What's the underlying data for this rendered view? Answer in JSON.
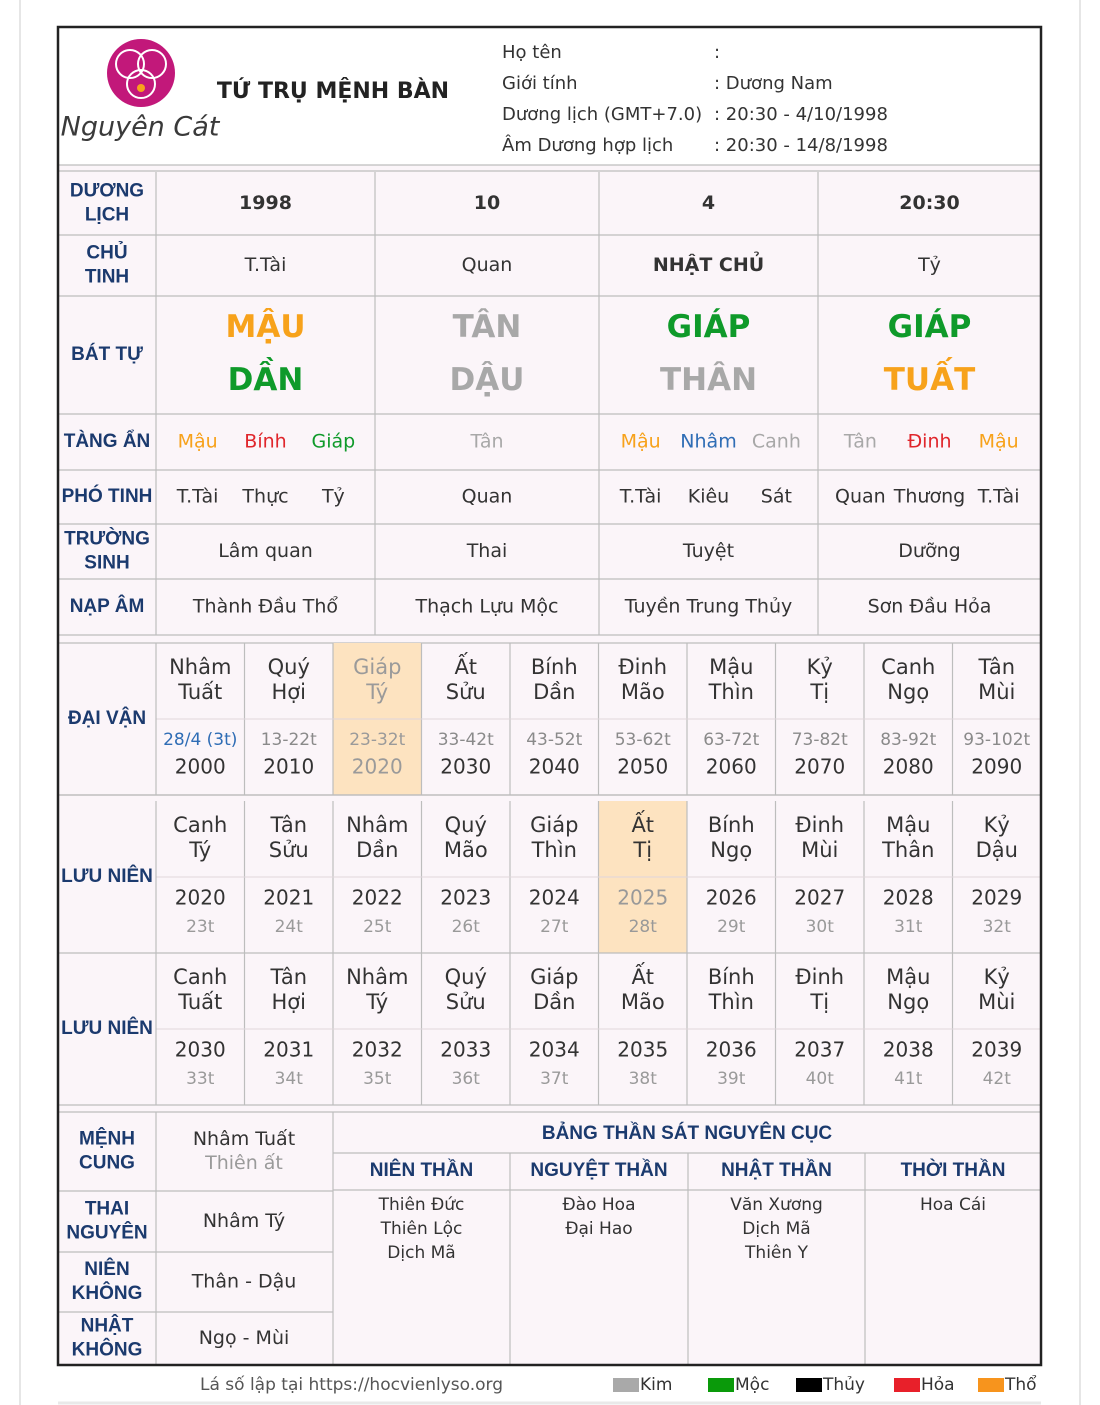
{
  "header": {
    "logo_text": "Nguyên Cát",
    "title": "TỨ TRỤ MỆNH BÀN",
    "info": [
      {
        "label": "Họ tên",
        "value": ":"
      },
      {
        "label": "Giới tính",
        "value": ": Dương Nam"
      },
      {
        "label": "Dương lịch (GMT+7.0)",
        "value": ": 20:30 - 4/10/1998"
      },
      {
        "label": "Âm Dương hợp lịch",
        "value": ": 20:30 - 14/8/1998"
      }
    ]
  },
  "pillars": {
    "rows": [
      {
        "label": [
          "DƯƠNG",
          "LỊCH"
        ],
        "cells": [
          [
            {
              "text": "1998",
              "bold": true
            }
          ],
          [
            {
              "text": "10",
              "bold": true
            }
          ],
          [
            {
              "text": "4",
              "bold": true
            }
          ],
          [
            {
              "text": "20:30",
              "bold": true
            }
          ]
        ]
      },
      {
        "label": [
          "CHỦ",
          "TINH"
        ],
        "cells": [
          [
            {
              "text": "T.Tài"
            }
          ],
          [
            {
              "text": "Quan"
            }
          ],
          [
            {
              "text": "NHẬT CHỦ",
              "bold": true
            }
          ],
          [
            {
              "text": "Tỷ"
            }
          ]
        ]
      },
      {
        "label": [
          "BÁT TỰ"
        ],
        "layout": "stack",
        "cells": [
          [
            {
              "text": "MẬU",
              "color": "#f7a21b"
            },
            {
              "text": "DẦN",
              "color": "#0f9a2a"
            }
          ],
          [
            {
              "text": "TÂN",
              "color": "#a8a8a8"
            },
            {
              "text": "DẬU",
              "color": "#a8a8a8"
            }
          ],
          [
            {
              "text": "GIÁP",
              "color": "#0f9a2a"
            },
            {
              "text": "THÂN",
              "color": "#a8a8a8"
            }
          ],
          [
            {
              "text": "GIÁP",
              "color": "#0f9a2a"
            },
            {
              "text": "TUẤT",
              "color": "#f7a21b"
            }
          ]
        ]
      },
      {
        "label": [
          "TÀNG ẨN"
        ],
        "cells": [
          [
            {
              "text": "Mậu",
              "color": "#f7a21b"
            },
            {
              "text": "Bính",
              "color": "#e0262c"
            },
            {
              "text": "Giáp",
              "color": "#0f9a2a"
            }
          ],
          [
            {
              "text": "Tân",
              "color": "#a8a8a8"
            }
          ],
          [
            {
              "text": "Mậu",
              "color": "#f7a21b"
            },
            {
              "text": "Nhâm",
              "color": "#2f6db5"
            },
            {
              "text": "Canh",
              "color": "#a8a8a8"
            }
          ],
          [
            {
              "text": "Tân",
              "color": "#a8a8a8"
            },
            {
              "text": "Đinh",
              "color": "#e0262c"
            },
            {
              "text": "Mậu",
              "color": "#f7a21b"
            }
          ]
        ]
      },
      {
        "label": [
          "PHÓ TINH"
        ],
        "cells": [
          [
            {
              "text": "T.Tài"
            },
            {
              "text": "Thực"
            },
            {
              "text": "Tỷ"
            }
          ],
          [
            {
              "text": "Quan"
            }
          ],
          [
            {
              "text": "T.Tài"
            },
            {
              "text": "Kiêu"
            },
            {
              "text": "Sát"
            }
          ],
          [
            {
              "text": "Quan"
            },
            {
              "text": "Thương"
            },
            {
              "text": "T.Tài"
            }
          ]
        ]
      },
      {
        "label": [
          "TRƯỜNG",
          "SINH"
        ],
        "cells": [
          [
            {
              "text": "Lâm quan"
            }
          ],
          [
            {
              "text": "Thai"
            }
          ],
          [
            {
              "text": "Tuyệt"
            }
          ],
          [
            {
              "text": "Dưỡng"
            }
          ]
        ]
      },
      {
        "label": [
          "NẠP ÂM"
        ],
        "cells": [
          [
            {
              "text": "Thành Đầu Thổ"
            }
          ],
          [
            {
              "text": "Thạch Lựu Mộc"
            }
          ],
          [
            {
              "text": "Tuyền Trung Thủy"
            }
          ],
          [
            {
              "text": "Sơn Đầu Hỏa"
            }
          ]
        ]
      }
    ]
  },
  "sections": [
    {
      "label": "ĐẠI VẬN",
      "line_colors": [
        "#8a8a8a",
        "#333333"
      ],
      "columns": [
        {
          "name": [
            "Nhâm",
            "Tuất"
          ],
          "lines": [
            "28/4 (3t)",
            "2000"
          ],
          "line_colors": [
            "#2f6db5",
            "#333333"
          ]
        },
        {
          "name": [
            "Quý",
            "Hợi"
          ],
          "lines": [
            "13-22t",
            "2010"
          ]
        },
        {
          "name": [
            "Giáp",
            "Tý"
          ],
          "lines": [
            "23-32t",
            "2020"
          ],
          "highlight": true
        },
        {
          "name": [
            "Ất",
            "Sửu"
          ],
          "lines": [
            "33-42t",
            "2030"
          ]
        },
        {
          "name": [
            "Bính",
            "Dần"
          ],
          "lines": [
            "43-52t",
            "2040"
          ]
        },
        {
          "name": [
            "Đinh",
            "Mão"
          ],
          "lines": [
            "53-62t",
            "2050"
          ]
        },
        {
          "name": [
            "Mậu",
            "Thìn"
          ],
          "lines": [
            "63-72t",
            "2060"
          ]
        },
        {
          "name": [
            "Kỷ",
            "Tị"
          ],
          "lines": [
            "73-82t",
            "2070"
          ]
        },
        {
          "name": [
            "Canh",
            "Ngọ"
          ],
          "lines": [
            "83-92t",
            "2080"
          ]
        },
        {
          "name": [
            "Tân",
            "Mùi"
          ],
          "lines": [
            "93-102t",
            "2090"
          ]
        }
      ]
    },
    {
      "label": "LƯU NIÊN",
      "line_colors": [
        "#333333",
        "#9a9a9a"
      ],
      "columns": [
        {
          "name": [
            "Canh",
            "Tý"
          ],
          "lines": [
            "2020",
            "23t"
          ]
        },
        {
          "name": [
            "Tân",
            "Sửu"
          ],
          "lines": [
            "2021",
            "24t"
          ]
        },
        {
          "name": [
            "Nhâm",
            "Dần"
          ],
          "lines": [
            "2022",
            "25t"
          ]
        },
        {
          "name": [
            "Quý",
            "Mão"
          ],
          "lines": [
            "2023",
            "26t"
          ]
        },
        {
          "name": [
            "Giáp",
            "Thìn"
          ],
          "lines": [
            "2024",
            "27t"
          ]
        },
        {
          "name": [
            "Ất",
            "Tị"
          ],
          "lines": [
            "2025",
            "28t"
          ],
          "highlight": true
        },
        {
          "name": [
            "Bính",
            "Ngọ"
          ],
          "lines": [
            "2026",
            "29t"
          ]
        },
        {
          "name": [
            "Đinh",
            "Mùi"
          ],
          "lines": [
            "2027",
            "30t"
          ]
        },
        {
          "name": [
            "Mậu",
            "Thân"
          ],
          "lines": [
            "2028",
            "31t"
          ]
        },
        {
          "name": [
            "Kỷ",
            "Dậu"
          ],
          "lines": [
            "2029",
            "32t"
          ]
        }
      ]
    },
    {
      "label": "LƯU NIÊN",
      "line_colors": [
        "#333333",
        "#9a9a9a"
      ],
      "columns": [
        {
          "name": [
            "Canh",
            "Tuất"
          ],
          "lines": [
            "2030",
            "33t"
          ]
        },
        {
          "name": [
            "Tân",
            "Hợi"
          ],
          "lines": [
            "2031",
            "34t"
          ]
        },
        {
          "name": [
            "Nhâm",
            "Tý"
          ],
          "lines": [
            "2032",
            "35t"
          ]
        },
        {
          "name": [
            "Quý",
            "Sửu"
          ],
          "lines": [
            "2033",
            "36t"
          ]
        },
        {
          "name": [
            "Giáp",
            "Dần"
          ],
          "lines": [
            "2034",
            "37t"
          ]
        },
        {
          "name": [
            "Ất",
            "Mão"
          ],
          "lines": [
            "2035",
            "38t"
          ]
        },
        {
          "name": [
            "Bính",
            "Thìn"
          ],
          "lines": [
            "2036",
            "39t"
          ]
        },
        {
          "name": [
            "Đinh",
            "Tị"
          ],
          "lines": [
            "2037",
            "40t"
          ]
        },
        {
          "name": [
            "Mậu",
            "Ngọ"
          ],
          "lines": [
            "2038",
            "41t"
          ]
        },
        {
          "name": [
            "Kỷ",
            "Mùi"
          ],
          "lines": [
            "2039",
            "42t"
          ]
        }
      ]
    }
  ],
  "palaces": [
    {
      "label": [
        "MỆNH",
        "CUNG"
      ],
      "value": [
        "Nhâm Tuất",
        "Thiên ất"
      ]
    },
    {
      "label": [
        "THAI",
        "NGUYÊN"
      ],
      "value": [
        "Nhâm Tý"
      ]
    },
    {
      "label": [
        "NIÊN",
        "KHÔNG"
      ],
      "value": [
        "Thân - Dậu"
      ]
    },
    {
      "label": [
        "NHẬT",
        "KHÔNG"
      ],
      "value": [
        "Ngọ - Mùi"
      ]
    }
  ],
  "than_sat": {
    "title": "BẢNG THẦN SÁT NGUYÊN CỤC",
    "columns": [
      {
        "header": "NIÊN THẦN",
        "items": [
          "Thiên Đức",
          "Thiên Lộc",
          "Dịch Mã"
        ]
      },
      {
        "header": "NGUYỆT THẦN",
        "items": [
          "Đào Hoa",
          "Đại Hao"
        ]
      },
      {
        "header": "NHẬT THẦN",
        "items": [
          "Văn Xương",
          "Dịch Mã",
          "Thiên Y"
        ]
      },
      {
        "header": "THỜI THẦN",
        "items": [
          "Hoa Cái"
        ]
      }
    ]
  },
  "footer": {
    "text": "Lá số lập tại https://hocvienlyso.org",
    "legend": [
      {
        "name": "Kim",
        "color": "#a9a9a9"
      },
      {
        "name": "Mộc",
        "color": "#0a9a0a"
      },
      {
        "name": "Thủy",
        "color": "#000000"
      },
      {
        "name": "Hỏa",
        "color": "#e8202a"
      },
      {
        "name": "Thổ",
        "color": "#f7941d"
      }
    ]
  }
}
